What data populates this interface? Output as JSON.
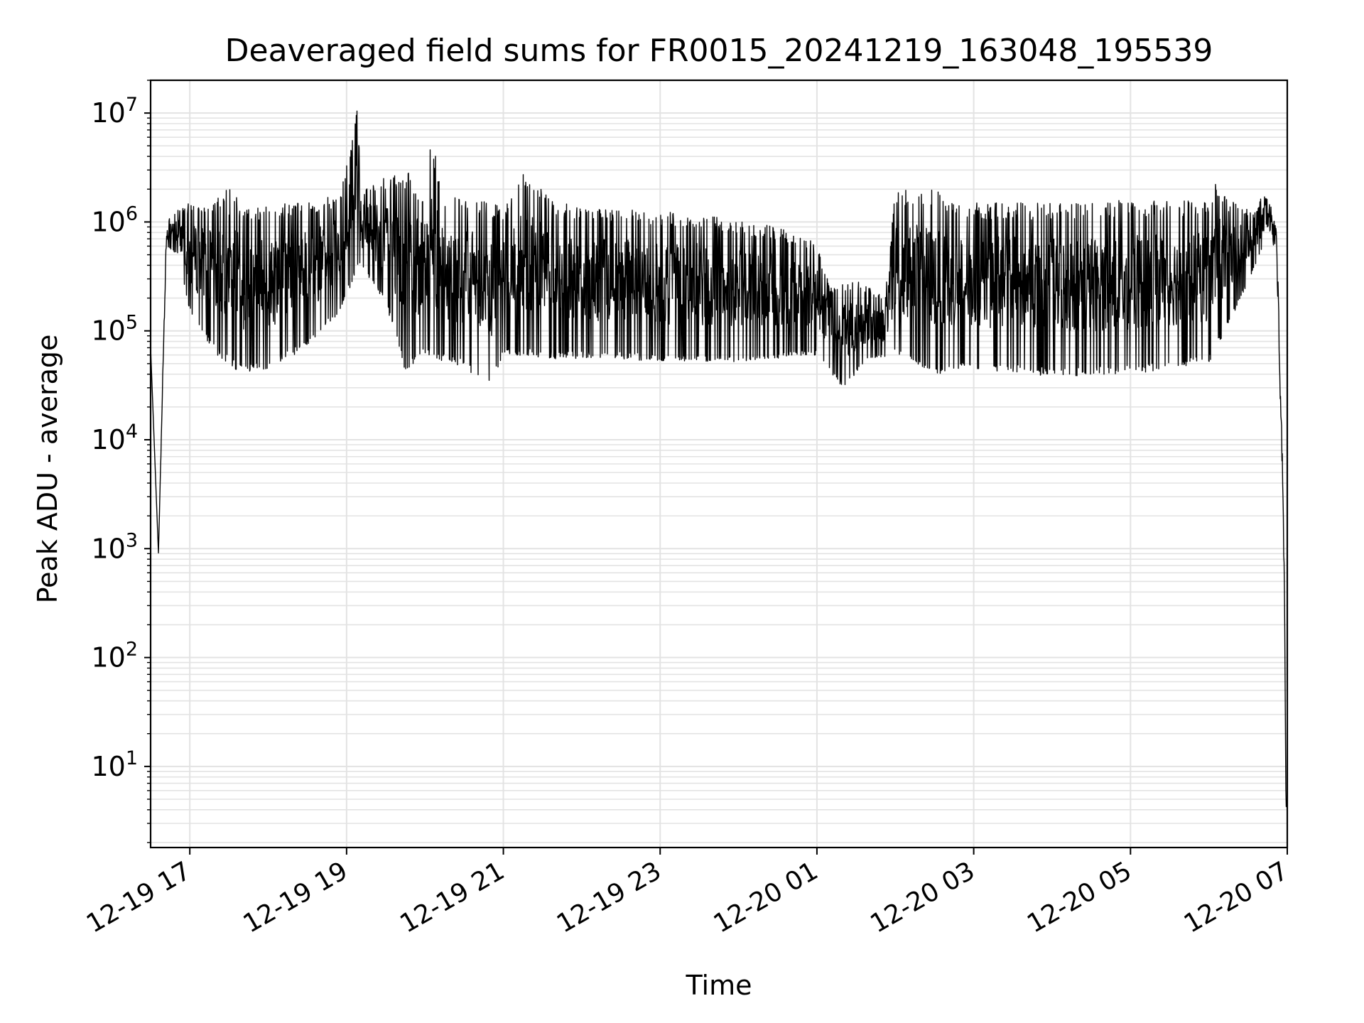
{
  "chart_data": {
    "type": "line",
    "title": "Deaveraged field sums for FR0015_20241219_163048_195539",
    "xlabel": "Time",
    "ylabel": "Peak ADU - average",
    "yscale": "log",
    "ylim": [
      1.8,
      20000000
    ],
    "xlim": [
      "2024-12-19T16:30",
      "2024-12-20T07:00"
    ],
    "grid": true,
    "x_ticks": [
      {
        "t": "2024-12-19T17:00",
        "label": "12-19 17"
      },
      {
        "t": "2024-12-19T19:00",
        "label": "12-19 19"
      },
      {
        "t": "2024-12-19T21:00",
        "label": "12-19 21"
      },
      {
        "t": "2024-12-19T23:00",
        "label": "12-19 23"
      },
      {
        "t": "2024-12-20T01:00",
        "label": "12-20 01"
      },
      {
        "t": "2024-12-20T03:00",
        "label": "12-20 03"
      },
      {
        "t": "2024-12-20T05:00",
        "label": "12-20 05"
      },
      {
        "t": "2024-12-20T07:00",
        "label": "12-20 07"
      }
    ],
    "y_ticks": [
      {
        "value": 10,
        "base": "10",
        "exp": "1"
      },
      {
        "value": 100,
        "base": "10",
        "exp": "2"
      },
      {
        "value": 1000,
        "base": "10",
        "exp": "3"
      },
      {
        "value": 10000,
        "base": "10",
        "exp": "4"
      },
      {
        "value": 100000,
        "base": "10",
        "exp": "5"
      },
      {
        "value": 1000000,
        "base": "10",
        "exp": "6"
      },
      {
        "value": 10000000,
        "base": "10",
        "exp": "7"
      }
    ],
    "series": [
      {
        "color": "#000000",
        "upper": [
          [
            "2024-12-19T16:30",
            70000
          ],
          [
            "2024-12-19T16:36",
            900
          ],
          [
            "2024-12-19T16:42",
            1000000
          ],
          [
            "2024-12-19T16:51",
            1300000
          ],
          [
            "2024-12-19T17:00",
            1500000
          ],
          [
            "2024-12-19T17:20",
            1600000
          ],
          [
            "2024-12-19T17:30",
            2700000
          ],
          [
            "2024-12-19T17:40",
            1400000
          ],
          [
            "2024-12-19T18:00",
            1500000
          ],
          [
            "2024-12-19T18:30",
            1500000
          ],
          [
            "2024-12-19T18:55",
            1800000
          ],
          [
            "2024-12-19T19:08",
            10500000
          ],
          [
            "2024-12-19T19:12",
            2000000
          ],
          [
            "2024-12-19T19:30",
            2600000
          ],
          [
            "2024-12-19T19:45",
            3000000
          ],
          [
            "2024-12-19T20:00",
            2000000
          ],
          [
            "2024-12-19T20:05",
            6000000
          ],
          [
            "2024-12-19T20:15",
            1800000
          ],
          [
            "2024-12-19T20:30",
            2000000
          ],
          [
            "2024-12-19T21:00",
            1400000
          ],
          [
            "2024-12-19T21:15",
            2900000
          ],
          [
            "2024-12-19T21:40",
            1500000
          ],
          [
            "2024-12-19T22:30",
            1300000
          ],
          [
            "2024-12-19T23:30",
            1200000
          ],
          [
            "2024-12-20T00:30",
            900000
          ],
          [
            "2024-12-20T01:00",
            650000
          ],
          [
            "2024-12-20T01:10",
            250000
          ],
          [
            "2024-12-20T01:30",
            300000
          ],
          [
            "2024-12-20T01:52",
            200000
          ],
          [
            "2024-12-20T02:00",
            2000000
          ],
          [
            "2024-12-20T02:30",
            2000000
          ],
          [
            "2024-12-20T02:45",
            1500000
          ],
          [
            "2024-12-20T04:00",
            1500000
          ],
          [
            "2024-12-20T05:00",
            1600000
          ],
          [
            "2024-12-20T06:00",
            1600000
          ],
          [
            "2024-12-20T06:05",
            2400000
          ],
          [
            "2024-12-20T06:15",
            1600000
          ],
          [
            "2024-12-20T06:35",
            1200000
          ],
          [
            "2024-12-20T06:42",
            1900000
          ],
          [
            "2024-12-20T06:48",
            1400000
          ],
          [
            "2024-12-20T06:52",
            800000
          ],
          [
            "2024-12-20T06:55",
            30000
          ],
          [
            "2024-12-20T06:57",
            3000
          ],
          [
            "2024-12-20T06:58",
            300
          ],
          [
            "2024-12-20T06:59",
            4.5
          ],
          [
            "2024-12-20T07:00",
            4.5
          ]
        ],
        "lower": [
          [
            "2024-12-19T16:30",
            70000
          ],
          [
            "2024-12-19T16:36",
            900
          ],
          [
            "2024-12-19T16:42",
            600000
          ],
          [
            "2024-12-19T16:51",
            500000
          ],
          [
            "2024-12-19T17:00",
            150000
          ],
          [
            "2024-12-19T17:20",
            60000
          ],
          [
            "2024-12-19T17:40",
            40000
          ],
          [
            "2024-12-19T18:00",
            45000
          ],
          [
            "2024-12-19T18:30",
            70000
          ],
          [
            "2024-12-19T18:55",
            150000
          ],
          [
            "2024-12-19T19:10",
            400000
          ],
          [
            "2024-12-19T19:30",
            180000
          ],
          [
            "2024-12-19T19:45",
            40000
          ],
          [
            "2024-12-19T20:00",
            60000
          ],
          [
            "2024-12-19T20:30",
            45000
          ],
          [
            "2024-12-19T20:50",
            30000
          ],
          [
            "2024-12-19T21:00",
            60000
          ],
          [
            "2024-12-19T21:30",
            55000
          ],
          [
            "2024-12-19T22:30",
            55000
          ],
          [
            "2024-12-19T23:30",
            50000
          ],
          [
            "2024-12-20T00:30",
            55000
          ],
          [
            "2024-12-20T01:00",
            60000
          ],
          [
            "2024-12-20T01:20",
            30000
          ],
          [
            "2024-12-20T01:40",
            55000
          ],
          [
            "2024-12-20T02:00",
            60000
          ],
          [
            "2024-12-20T02:30",
            40000
          ],
          [
            "2024-12-20T03:00",
            45000
          ],
          [
            "2024-12-20T04:00",
            38000
          ],
          [
            "2024-12-20T05:00",
            40000
          ],
          [
            "2024-12-20T06:00",
            50000
          ],
          [
            "2024-12-20T06:20",
            150000
          ],
          [
            "2024-12-20T06:42",
            600000
          ],
          [
            "2024-12-20T06:48",
            900000
          ],
          [
            "2024-12-20T06:52",
            300000
          ],
          [
            "2024-12-20T06:55",
            15000
          ],
          [
            "2024-12-20T06:57",
            1500
          ],
          [
            "2024-12-20T06:58",
            200
          ],
          [
            "2024-12-20T06:59",
            3.8
          ],
          [
            "2024-12-20T07:00",
            3.8
          ]
        ]
      }
    ]
  }
}
